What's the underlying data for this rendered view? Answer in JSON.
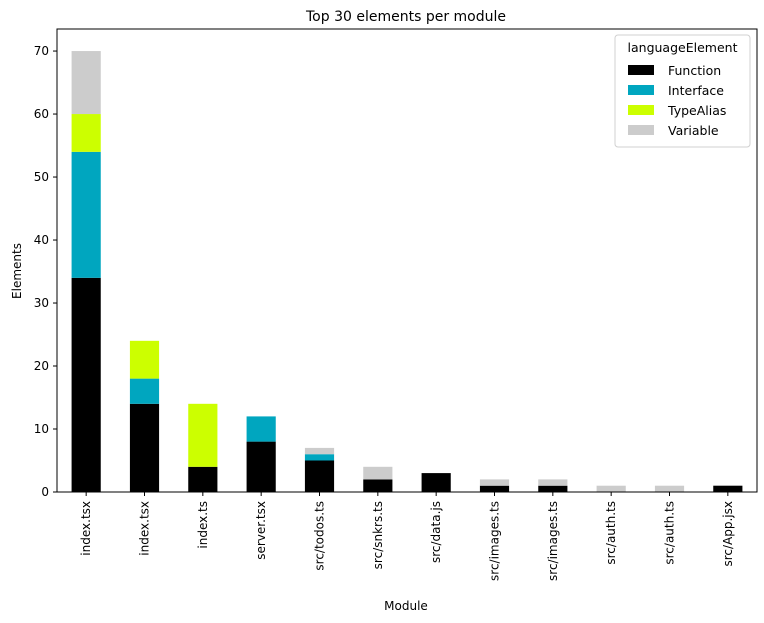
{
  "chart_data": {
    "type": "bar",
    "stacked": true,
    "title": "Top 30 elements per module",
    "xlabel": "Module",
    "ylabel": "Elements",
    "ylim": [
      0,
      73.5
    ],
    "yticks": [
      0,
      10,
      20,
      30,
      40,
      50,
      60,
      70
    ],
    "grid": false,
    "legend": {
      "title": "languageElement",
      "placement": "top-right"
    },
    "categories": [
      "index.tsx",
      "index.tsx",
      "index.ts",
      "server.tsx",
      "src/todos.ts",
      "src/snkrs.ts",
      "src/data.js",
      "src/images.ts",
      "src/images.ts",
      "src/auth.ts",
      "src/auth.ts",
      "src/App.jsx"
    ],
    "series": [
      {
        "name": "Function",
        "color": "#000000",
        "values": [
          34,
          14,
          4,
          8,
          5,
          2,
          3,
          1,
          1,
          0,
          0,
          1
        ]
      },
      {
        "name": "Interface",
        "color": "#00a6bf",
        "values": [
          20,
          4,
          0,
          4,
          1,
          0,
          0,
          0,
          0,
          0,
          0,
          0
        ]
      },
      {
        "name": "TypeAlias",
        "color": "#ccff00",
        "values": [
          6,
          6,
          10,
          0,
          0,
          0,
          0,
          0,
          0,
          0,
          0,
          0
        ]
      },
      {
        "name": "Variable",
        "color": "#cccccc",
        "values": [
          10,
          0,
          0,
          0,
          1,
          2,
          0,
          1,
          1,
          1,
          1,
          0
        ]
      }
    ]
  }
}
